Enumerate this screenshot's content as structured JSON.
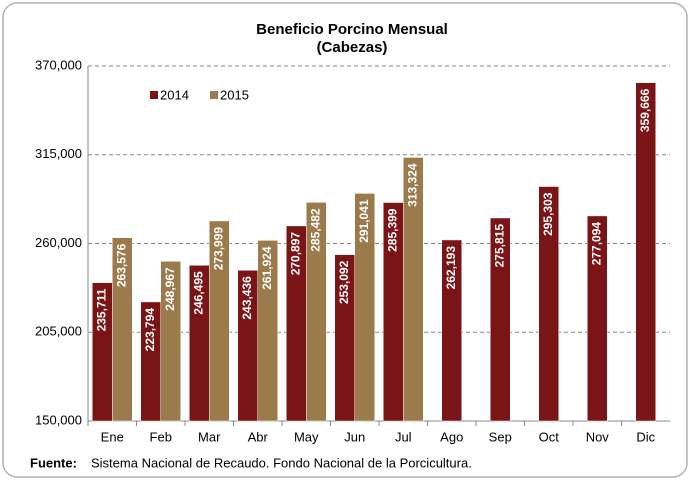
{
  "chart_data": {
    "type": "bar",
    "title": "Beneficio Porcino Mensual",
    "subtitle": "(Cabezas)",
    "categories": [
      "Ene",
      "Feb",
      "Mar",
      "Abr",
      "May",
      "Jun",
      "Jul",
      "Ago",
      "Sep",
      "Oct",
      "Nov",
      "Dic"
    ],
    "series": [
      {
        "name": "2014",
        "color": "#7b1416",
        "values": [
          235711,
          223794,
          246495,
          243436,
          270897,
          253092,
          285399,
          262193,
          275815,
          295303,
          277094,
          359666
        ],
        "value_labels": [
          "235,711",
          "223,794",
          "246,495",
          "243,436",
          "270,897",
          "253,092",
          "285,399",
          "262,193",
          "275,815",
          "295,303",
          "277,094",
          "359,666"
        ]
      },
      {
        "name": "2015",
        "color": "#9b7b4c",
        "values": [
          263576,
          248967,
          273999,
          261924,
          285482,
          291041,
          313324,
          null,
          null,
          null,
          null,
          null
        ],
        "value_labels": [
          "263,576",
          "248,967",
          "273,999",
          "261,924",
          "285,482",
          "291,041",
          "313,324",
          null,
          null,
          null,
          null,
          null
        ]
      }
    ],
    "ylim": [
      150000,
      370000
    ],
    "yticks": [
      {
        "value": 150000,
        "label": "150,000"
      },
      {
        "value": 205000,
        "label": "205,000"
      },
      {
        "value": 260000,
        "label": "260,000"
      },
      {
        "value": 315000,
        "label": "315,000"
      },
      {
        "value": 370000,
        "label": "370,000"
      }
    ],
    "grid": true,
    "legend": "top-left",
    "source_label": "Fuente:",
    "source": "Sistema Nacional de Recaudo. Fondo Nacional de la Porcicultura."
  }
}
